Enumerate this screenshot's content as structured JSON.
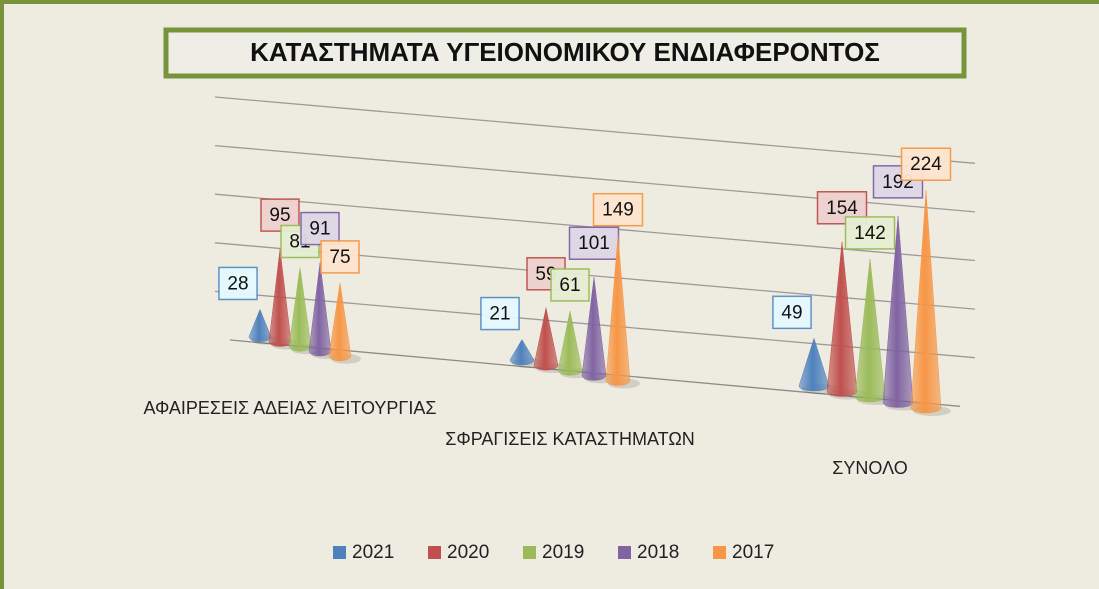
{
  "chart_data": {
    "type": "cone3d",
    "title": "ΚΑΤΑΣΤΗΜΑΤΑ ΥΓΕΙΟΝΟΜΙΚΟΥ ΕΝΔΙΑΦΕΡΟΝΤΟΣ",
    "categories": [
      "ΑΦΑΙΡΕΣΕΙΣ ΑΔΕΙΑΣ ΛΕΙΤΟΥΡΓΙΑΣ",
      "ΣΦΡΑΓΙΣΕΙΣ ΚΑΤΑΣΤΗΜΑΤΩΝ",
      "ΣΥΝΟΛΟ"
    ],
    "series": [
      {
        "name": "2021",
        "color": "#4f81bd",
        "values": [
          28,
          21,
          49
        ]
      },
      {
        "name": "2020",
        "color": "#c0504d",
        "values": [
          95,
          59,
          154
        ]
      },
      {
        "name": "2019",
        "color": "#9bbb59",
        "values": [
          81,
          61,
          142
        ]
      },
      {
        "name": "2018",
        "color": "#8064a2",
        "values": [
          91,
          101,
          192
        ]
      },
      {
        "name": "2017",
        "color": "#f79646",
        "values": [
          75,
          149,
          224
        ]
      }
    ],
    "ylim": [
      0,
      250
    ],
    "yticks": [
      0,
      50,
      100,
      150,
      200,
      250
    ],
    "grid": true,
    "legend": "bottom"
  }
}
